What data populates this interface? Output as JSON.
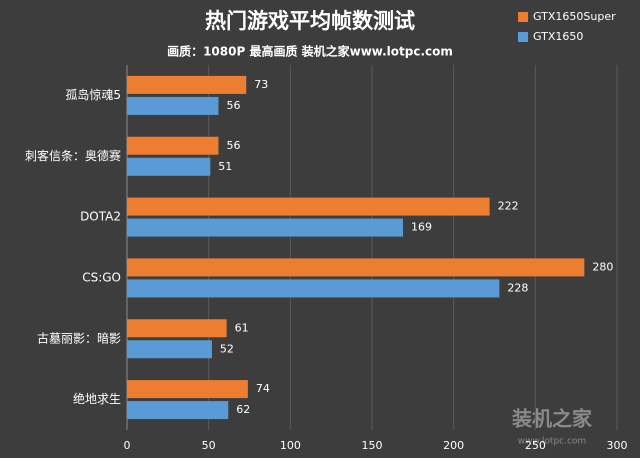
{
  "chart_data": {
    "type": "hbar",
    "title": "热门游戏平均帧数测试",
    "subtitle": "画质：1080P 最高画质 装机之家www.lotpc.com",
    "categories": [
      "孤岛惊魂5",
      "刺客信条：奥德赛",
      "DOTA2",
      "CS:GO",
      "古墓丽影：暗影",
      "绝地求生"
    ],
    "series": [
      {
        "name": "GTX1650Super",
        "color": "#ed7d31",
        "values": [
          73,
          56,
          222,
          280,
          61,
          74
        ]
      },
      {
        "name": "GTX1650",
        "color": "#5b9bd5",
        "values": [
          56,
          51,
          169,
          228,
          52,
          62
        ]
      }
    ],
    "xlim": [
      0,
      300
    ],
    "xticks": [
      0,
      50,
      100,
      150,
      200,
      250,
      300
    ],
    "grid": true,
    "legend": "top-right",
    "watermark": {
      "brand": "装机之家",
      "url": "www.lotpc.com"
    }
  }
}
